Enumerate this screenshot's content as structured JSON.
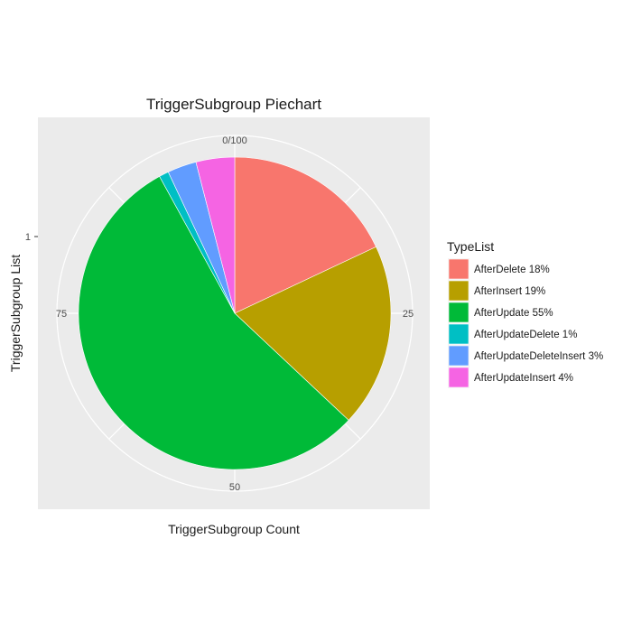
{
  "chart_data": {
    "type": "pie",
    "title": "TriggerSubgroup Piechart",
    "xlabel": "TriggerSubgroup Count",
    "ylabel": "TriggerSubgroup List",
    "y_tick_labels": [
      "1"
    ],
    "theta_tick_labels": [
      "0/100",
      "25",
      "50",
      "75"
    ],
    "theta_tick_values": [
      0,
      25,
      50,
      75
    ],
    "total": 100,
    "grid": true,
    "legend_position": "right",
    "legend_title": "TypeList",
    "slices": [
      {
        "label": "AfterDelete 18%",
        "value": 18,
        "color": "#F8766D"
      },
      {
        "label": "AfterInsert 19%",
        "value": 19,
        "color": "#B79F00"
      },
      {
        "label": "AfterUpdate 55%",
        "value": 55,
        "color": "#00BA38"
      },
      {
        "label": "AfterUpdateDelete 1%",
        "value": 1,
        "color": "#00BFC4"
      },
      {
        "label": "AfterUpdateDeleteInsert 3%",
        "value": 3,
        "color": "#619CFF"
      },
      {
        "label": "AfterUpdateInsert 4%",
        "value": 4,
        "color": "#F564E3"
      }
    ]
  }
}
